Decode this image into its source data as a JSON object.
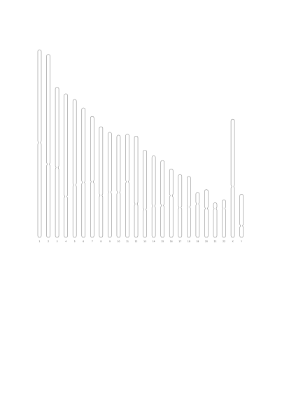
{
  "diagram": {
    "type": "chromosome-ideogram",
    "outline_color": "#8a8a8a",
    "label_color": "#333333",
    "chromosomes": [
      {
        "label": "1",
        "length": 1.0,
        "centromere": 0.495
      },
      {
        "label": "2",
        "length": 0.975,
        "centromere": 0.6
      },
      {
        "label": "3",
        "length": 0.8,
        "centromere": 0.535
      },
      {
        "label": "4",
        "length": 0.765,
        "centromere": 0.715
      },
      {
        "label": "5",
        "length": 0.735,
        "centromere": 0.62
      },
      {
        "label": "6",
        "length": 0.69,
        "centromere": 0.575
      },
      {
        "label": "7",
        "length": 0.645,
        "centromere": 0.54
      },
      {
        "label": "8",
        "length": 0.59,
        "centromere": 0.62
      },
      {
        "label": "9",
        "length": 0.56,
        "centromere": 0.57
      },
      {
        "label": "10",
        "length": 0.545,
        "centromere": 0.56
      },
      {
        "label": "11",
        "length": 0.55,
        "centromere": 0.46
      },
      {
        "label": "12",
        "length": 0.54,
        "centromere": 0.67
      },
      {
        "label": "13",
        "length": 0.465,
        "centromere": 0.68
      },
      {
        "label": "14",
        "length": 0.435,
        "centromere": 0.615
      },
      {
        "label": "15",
        "length": 0.41,
        "centromere": 0.585
      },
      {
        "label": "16",
        "length": 0.365,
        "centromere": 0.39
      },
      {
        "label": "17",
        "length": 0.335,
        "centromere": 0.525
      },
      {
        "label": "18",
        "length": 0.325,
        "centromere": 0.5
      },
      {
        "label": "19",
        "length": 0.24,
        "centromere": 0.255
      },
      {
        "label": "20",
        "length": 0.255,
        "centromere": 0.395
      },
      {
        "label": "21",
        "length": 0.185,
        "centromere": 0.17
      },
      {
        "label": "22",
        "length": 0.2,
        "centromere": 0.23
      },
      {
        "label": "X",
        "length": 0.63,
        "centromere": 0.57
      },
      {
        "label": "Y",
        "length": 0.23,
        "centromere": 0.73
      }
    ]
  }
}
